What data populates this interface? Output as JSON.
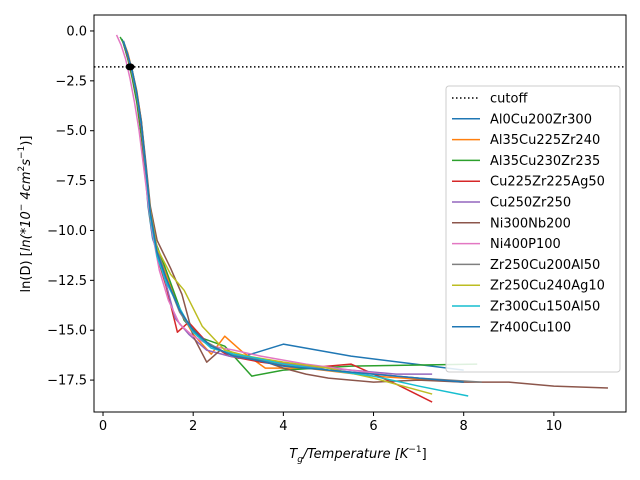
{
  "chart_data": {
    "type": "line",
    "title": "",
    "xlabel_main": "T",
    "xlabel_sub": "g",
    "xlabel_rest": "/Temperature [K",
    "xlabel_sup": "−1",
    "xlabel_end": "]",
    "ylabel_pre": "ln(D) [",
    "ylabel_italic": "ln(*10",
    "ylabel_sup1": "−",
    "ylabel_mid": " 4cm",
    "ylabel_sup2": "2",
    "ylabel_s": "s",
    "ylabel_sup3": "−1",
    "ylabel_end": ")]",
    "xlim": [
      -0.2,
      11.6
    ],
    "ylim": [
      -19.1,
      0.8
    ],
    "xticks": [
      0,
      2,
      4,
      6,
      8,
      10
    ],
    "xtick_labels": [
      "0",
      "2",
      "4",
      "6",
      "8",
      "10"
    ],
    "yticks": [
      0,
      -2.5,
      -5,
      -7.5,
      -10,
      -12.5,
      -15,
      -17.5
    ],
    "ytick_labels": [
      "0.0",
      "−2.5",
      "−5.0",
      "−7.5",
      "−10.0",
      "−12.5",
      "−15.0",
      "−17.5"
    ],
    "cutoff": {
      "name": "cutoff",
      "y": -1.8,
      "color": "#000000"
    },
    "marker": {
      "x": 0.6,
      "y": -1.8
    },
    "legend_position": "center-right",
    "series": [
      {
        "name": "Al0Cu200Zr300",
        "color": "#1f77b4",
        "x": [
          0.42,
          0.5,
          0.6,
          0.7,
          0.8,
          0.9,
          1.0,
          1.1,
          1.3,
          1.5,
          1.8,
          2.1,
          2.5,
          3.0,
          4.0,
          5.5,
          8.0
        ],
        "y": [
          -0.4,
          -1.0,
          -1.8,
          -2.8,
          -4.2,
          -6.2,
          -8.8,
          -10.4,
          -11.8,
          -12.8,
          -14.5,
          -15.3,
          -15.9,
          -16.4,
          -15.7,
          -16.3,
          -17.0
        ]
      },
      {
        "name": "Al35Cu225Zr240",
        "color": "#ff7f0e",
        "x": [
          0.45,
          0.55,
          0.65,
          0.75,
          0.85,
          0.95,
          1.05,
          1.2,
          1.4,
          1.7,
          2.0,
          2.4,
          2.7,
          3.1,
          3.6,
          4.5,
          6.0,
          8.0
        ],
        "y": [
          -0.5,
          -1.1,
          -2.0,
          -3.0,
          -4.5,
          -6.8,
          -9.2,
          -11.0,
          -12.2,
          -14.0,
          -15.2,
          -16.2,
          -15.3,
          -16.1,
          -16.9,
          -16.9,
          -17.3,
          -17.6
        ]
      },
      {
        "name": "Al35Cu230Zr235",
        "color": "#2ca02c",
        "x": [
          0.38,
          0.45,
          0.55,
          0.65,
          0.75,
          0.85,
          0.95,
          1.05,
          1.15,
          1.4,
          1.8,
          2.2,
          2.7,
          3.3,
          4.0,
          5.5,
          8.3
        ],
        "y": [
          -0.3,
          -0.6,
          -1.4,
          -2.4,
          -3.6,
          -5.3,
          -7.5,
          -9.5,
          -10.5,
          -12.0,
          -14.5,
          -15.4,
          -15.8,
          -17.3,
          -17.0,
          -16.8,
          -16.7
        ]
      },
      {
        "name": "Cu225Zr225Ag50",
        "color": "#d62728",
        "x": [
          0.45,
          0.55,
          0.65,
          0.75,
          0.85,
          0.95,
          1.05,
          1.2,
          1.4,
          1.65,
          1.9,
          2.3,
          2.8,
          3.5,
          4.5,
          5.5,
          6.5,
          7.3
        ],
        "y": [
          -0.5,
          -1.3,
          -2.2,
          -3.3,
          -4.9,
          -7.2,
          -9.4,
          -11.3,
          -12.8,
          -15.1,
          -14.6,
          -15.6,
          -16.3,
          -16.6,
          -16.9,
          -16.7,
          -17.7,
          -18.6
        ]
      },
      {
        "name": "Cu250Zr250",
        "color": "#9467bd",
        "x": [
          0.45,
          0.55,
          0.65,
          0.75,
          0.85,
          0.95,
          1.05,
          1.2,
          1.4,
          1.6,
          1.9,
          2.3,
          2.8,
          3.5,
          4.5,
          5.5,
          6.5,
          7.3
        ],
        "y": [
          -0.5,
          -1.2,
          -2.1,
          -3.2,
          -4.7,
          -7.0,
          -9.2,
          -11.2,
          -12.7,
          -14.4,
          -15.2,
          -16.0,
          -16.3,
          -16.5,
          -16.8,
          -17.0,
          -17.2,
          -17.2
        ]
      },
      {
        "name": "Ni300Nb200",
        "color": "#8c564b",
        "x": [
          0.45,
          0.55,
          0.65,
          0.75,
          0.85,
          0.95,
          1.05,
          1.2,
          1.5,
          1.75,
          2.0,
          2.3,
          2.6,
          3.0,
          3.5,
          4.0,
          4.5,
          5.0,
          5.5,
          6.0,
          7.0,
          8.0,
          9.0,
          10.0,
          11.2
        ],
        "y": [
          -0.5,
          -1.2,
          -2.0,
          -3.1,
          -4.5,
          -6.6,
          -8.8,
          -10.5,
          -11.9,
          -13.2,
          -15.3,
          -16.6,
          -16.0,
          -16.3,
          -16.5,
          -16.9,
          -17.2,
          -17.4,
          -17.5,
          -17.6,
          -17.5,
          -17.6,
          -17.6,
          -17.8,
          -17.9
        ]
      },
      {
        "name": "Ni400P100",
        "color": "#e377c2",
        "x": [
          0.3,
          0.4,
          0.5,
          0.6,
          0.7,
          0.8,
          0.9,
          1.0,
          1.1,
          1.25,
          1.45,
          1.7,
          2.0,
          2.4,
          2.9,
          3.5,
          4.5,
          5.5,
          6.5,
          7.0
        ],
        "y": [
          -0.2,
          -0.7,
          -1.4,
          -2.4,
          -3.6,
          -5.0,
          -6.8,
          -8.6,
          -10.2,
          -12.0,
          -13.5,
          -14.7,
          -15.3,
          -15.8,
          -16.0,
          -16.3,
          -16.7,
          -17.0,
          -17.3,
          -17.4
        ]
      },
      {
        "name": "Zr250Cu200Al50",
        "color": "#7f7f7f",
        "x": [
          0.45,
          0.55,
          0.65,
          0.75,
          0.85,
          0.95,
          1.05,
          1.2,
          1.4,
          1.7,
          2.0,
          2.3,
          2.7,
          3.2,
          4.0,
          5.0,
          6.0,
          7.0,
          8.4
        ],
        "y": [
          -0.5,
          -1.2,
          -2.1,
          -3.2,
          -4.7,
          -6.9,
          -9.1,
          -10.9,
          -12.4,
          -14.1,
          -15.1,
          -15.6,
          -16.1,
          -16.4,
          -16.7,
          -17.0,
          -17.2,
          -17.4,
          -17.6
        ]
      },
      {
        "name": "Zr250Cu240Ag10",
        "color": "#bcbd22",
        "x": [
          0.45,
          0.55,
          0.65,
          0.75,
          0.85,
          0.95,
          1.05,
          1.2,
          1.5,
          1.8,
          2.2,
          2.7,
          3.2,
          4.0,
          5.0,
          6.0,
          7.3
        ],
        "y": [
          -0.5,
          -1.2,
          -2.1,
          -3.2,
          -4.6,
          -6.8,
          -9.0,
          -10.9,
          -12.2,
          -13.0,
          -14.8,
          -16.0,
          -16.3,
          -16.6,
          -16.9,
          -17.4,
          -18.2
        ]
      },
      {
        "name": "Zr300Cu150Al50",
        "color": "#17becf",
        "x": [
          0.45,
          0.55,
          0.65,
          0.75,
          0.85,
          0.95,
          1.05,
          1.2,
          1.4,
          1.7,
          2.0,
          2.4,
          2.9,
          3.4,
          4.0,
          5.0,
          6.0,
          7.0,
          8.1
        ],
        "y": [
          -0.5,
          -1.2,
          -2.1,
          -3.2,
          -4.7,
          -7.0,
          -9.3,
          -11.3,
          -12.6,
          -13.9,
          -15.1,
          -15.9,
          -16.2,
          -16.4,
          -16.7,
          -17.0,
          -17.3,
          -17.8,
          -18.3
        ]
      },
      {
        "name": "Zr400Cu100",
        "color": "#1f77b4",
        "x": [
          0.45,
          0.55,
          0.65,
          0.75,
          0.85,
          0.95,
          1.05,
          1.2,
          1.4,
          1.7,
          2.0,
          2.4,
          2.9,
          3.4,
          4.0,
          5.0,
          6.0,
          7.0,
          8.0
        ],
        "y": [
          -0.5,
          -1.2,
          -2.0,
          -3.1,
          -4.6,
          -6.8,
          -9.1,
          -11.1,
          -12.4,
          -14.0,
          -15.0,
          -15.8,
          -16.3,
          -16.5,
          -16.8,
          -17.0,
          -17.2,
          -17.4,
          -17.6
        ]
      }
    ]
  }
}
